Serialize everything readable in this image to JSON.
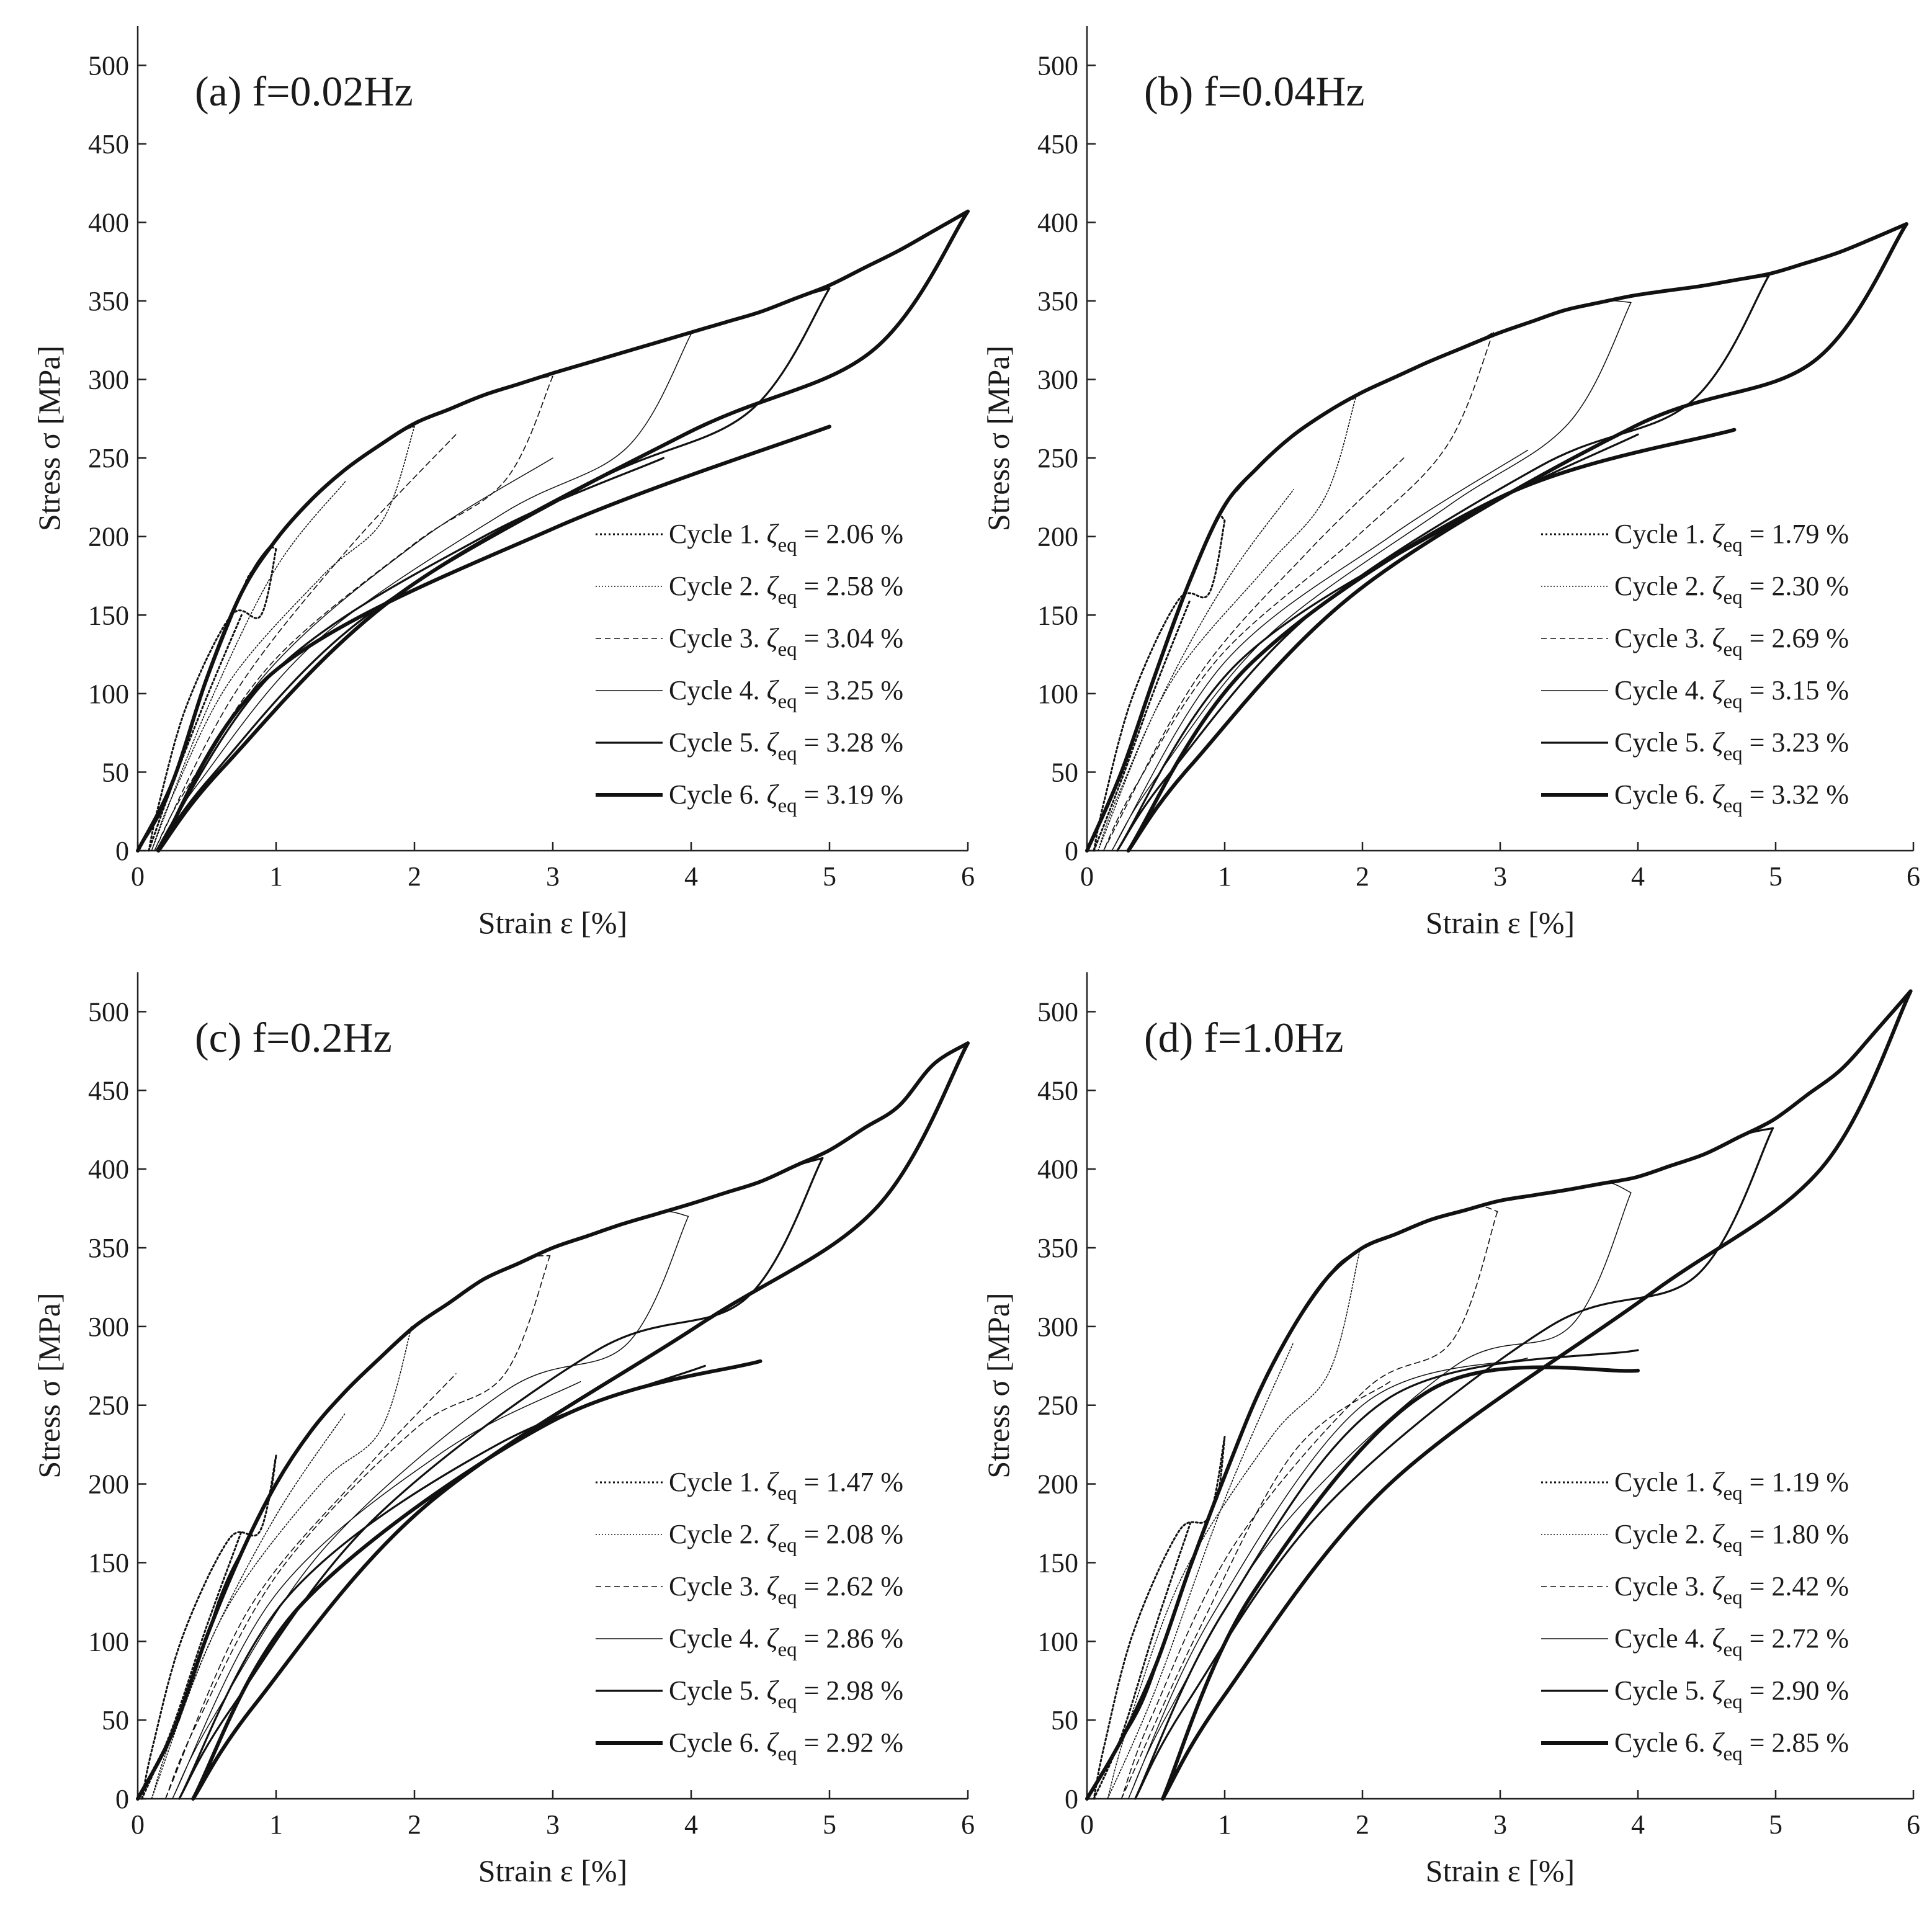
{
  "chart_data": [
    {
      "type": "line",
      "title": "(a) f=0.02Hz",
      "xlabel": "Strain ε [%]",
      "ylabel": "Stress σ [MPa]",
      "xlim": [
        0,
        6
      ],
      "ylim": [
        0,
        525
      ],
      "xticks": [
        0,
        1,
        2,
        3,
        4,
        5,
        6
      ],
      "yticks": [
        0,
        50,
        100,
        150,
        200,
        250,
        300,
        350,
        400,
        450,
        500
      ],
      "grid": false,
      "legend_position": "bottom-right",
      "series": [
        {
          "name": "Cycle 1",
          "zeta_eq": "2.06",
          "strain_max": 1,
          "stress_max": 192,
          "residual": 0.08,
          "unload_mid": 150,
          "reload": [
            [
              0.25,
              42
            ],
            [
              0.5,
              98
            ],
            [
              0.75,
              150
            ]
          ]
        },
        {
          "name": "Cycle 2",
          "zeta_eq": "2.58",
          "strain_max": 2,
          "stress_max": 270,
          "residual": 0.1,
          "unload_mid": 175,
          "reload": [
            [
              0.5,
              90
            ],
            [
              1,
              180
            ],
            [
              1.5,
              235
            ]
          ]
        },
        {
          "name": "Cycle 3",
          "zeta_eq": "3.04",
          "strain_max": 3,
          "stress_max": 302,
          "residual": 0.12,
          "unload_mid": 195,
          "reload": [
            [
              0.7,
              100
            ],
            [
              1.5,
              190
            ],
            [
              2.3,
              265
            ]
          ]
        },
        {
          "name": "Cycle 4",
          "zeta_eq": "3.25",
          "strain_max": 4,
          "stress_max": 329,
          "residual": 0.13,
          "unload_mid": 215,
          "reload": [
            [
              0.9,
              110
            ],
            [
              2,
              195
            ],
            [
              3,
              250
            ]
          ]
        },
        {
          "name": "Cycle 5",
          "zeta_eq": "3.28",
          "strain_max": 5,
          "stress_max": 358,
          "residual": 0.14,
          "unload_mid": 235,
          "reload": [
            [
              1,
              115
            ],
            [
              2.5,
              200
            ],
            [
              3.8,
              250
            ]
          ]
        },
        {
          "name": "Cycle 6",
          "zeta_eq": "3.19",
          "strain_max": 6,
          "stress_max": 407,
          "residual": 0.15,
          "unload_mid": 265,
          "reload": [
            [
              1,
              115
            ],
            [
              3,
              205
            ],
            [
              5,
              270
            ]
          ]
        }
      ],
      "envelope": [
        [
          0,
          0
        ],
        [
          0.2,
          30
        ],
        [
          0.5,
          110
        ],
        [
          0.8,
          175
        ],
        [
          1,
          198
        ],
        [
          1.3,
          228
        ],
        [
          1.6,
          250
        ],
        [
          2,
          272
        ],
        [
          2.5,
          290
        ],
        [
          3,
          304
        ],
        [
          3.5,
          317
        ],
        [
          4,
          330
        ],
        [
          4.5,
          343
        ],
        [
          5,
          360
        ],
        [
          5.5,
          382
        ],
        [
          6,
          407
        ]
      ]
    },
    {
      "type": "line",
      "title": "(b) f=0.04Hz",
      "xlabel": "Strain ε [%]",
      "ylabel": "Stress σ [MPa]",
      "xlim": [
        0,
        6
      ],
      "ylim": [
        0,
        525
      ],
      "xticks": [
        0,
        1,
        2,
        3,
        4,
        5,
        6
      ],
      "yticks": [
        0,
        50,
        100,
        150,
        200,
        250,
        300,
        350,
        400,
        450,
        500
      ],
      "grid": false,
      "legend_position": "bottom-right",
      "series": [
        {
          "name": "Cycle 1",
          "zeta_eq": "1.79",
          "strain_max": 1,
          "stress_max": 210,
          "residual": 0.05,
          "unload_mid": 160,
          "reload": [
            [
              0.25,
              45
            ],
            [
              0.5,
              105
            ],
            [
              0.75,
              160
            ]
          ]
        },
        {
          "name": "Cycle 2",
          "zeta_eq": "2.30",
          "strain_max": 1.95,
          "stress_max": 288,
          "residual": 0.08,
          "unload_mid": 180,
          "reload": [
            [
              0.5,
              90
            ],
            [
              1,
              170
            ],
            [
              1.5,
              230
            ]
          ]
        },
        {
          "name": "Cycle 3",
          "zeta_eq": "2.69",
          "strain_max": 2.95,
          "stress_max": 330,
          "residual": 0.12,
          "unload_mid": 200,
          "reload": [
            [
              0.8,
              110
            ],
            [
              1.6,
              190
            ],
            [
              2.3,
              250
            ]
          ]
        },
        {
          "name": "Cycle 4",
          "zeta_eq": "3.15",
          "strain_max": 3.95,
          "stress_max": 349,
          "residual": 0.18,
          "unload_mid": 220,
          "reload": [
            [
              1,
              120
            ],
            [
              2.2,
              200
            ],
            [
              3.2,
              255
            ]
          ]
        },
        {
          "name": "Cycle 5",
          "zeta_eq": "3.23",
          "strain_max": 4.95,
          "stress_max": 366,
          "residual": 0.22,
          "unload_mid": 245,
          "reload": [
            [
              1.1,
              120
            ],
            [
              2.7,
              210
            ],
            [
              4,
              265
            ]
          ]
        },
        {
          "name": "Cycle 6",
          "zeta_eq": "3.32",
          "strain_max": 5.95,
          "stress_max": 399,
          "residual": 0.3,
          "unload_mid": 270,
          "reload": [
            [
              1.2,
              120
            ],
            [
              3,
              225
            ],
            [
              4.7,
              268
            ]
          ]
        }
      ],
      "envelope": [
        [
          0,
          0
        ],
        [
          0.3,
          60
        ],
        [
          0.6,
          140
        ],
        [
          0.9,
          205
        ],
        [
          1,
          220
        ],
        [
          1.3,
          250
        ],
        [
          1.6,
          272
        ],
        [
          2,
          292
        ],
        [
          2.5,
          312
        ],
        [
          3,
          330
        ],
        [
          3.5,
          345
        ],
        [
          4,
          354
        ],
        [
          4.5,
          360
        ],
        [
          5,
          368
        ],
        [
          5.5,
          382
        ],
        [
          5.95,
          399
        ]
      ]
    },
    {
      "type": "line",
      "title": "(c) f=0.2Hz",
      "xlabel": "Strain ε [%]",
      "ylabel": "Stress σ [MPa]",
      "xlim": [
        0,
        6
      ],
      "ylim": [
        0,
        525
      ],
      "xticks": [
        0,
        1,
        2,
        3,
        4,
        5,
        6
      ],
      "yticks": [
        0,
        50,
        100,
        150,
        200,
        250,
        300,
        350,
        400,
        450,
        500
      ],
      "grid": false,
      "legend_position": "bottom-right",
      "series": [
        {
          "name": "Cycle 1",
          "zeta_eq": "1.47",
          "strain_max": 1,
          "stress_max": 218,
          "residual": 0.03,
          "unload_mid": 165,
          "reload": [
            [
              0.25,
              45
            ],
            [
              0.5,
              110
            ],
            [
              0.75,
              170
            ]
          ]
        },
        {
          "name": "Cycle 2",
          "zeta_eq": "2.08",
          "strain_max": 1.98,
          "stress_max": 300,
          "residual": 0.1,
          "unload_mid": 200,
          "reload": [
            [
              0.5,
              95
            ],
            [
              1,
              180
            ],
            [
              1.5,
              245
            ]
          ]
        },
        {
          "name": "Cycle 3",
          "zeta_eq": "2.62",
          "strain_max": 2.98,
          "stress_max": 345,
          "residual": 0.2,
          "unload_mid": 235,
          "reload": [
            [
              0.8,
              120
            ],
            [
              1.6,
              205
            ],
            [
              2.3,
              270
            ]
          ]
        },
        {
          "name": "Cycle 4",
          "zeta_eq": "2.86",
          "strain_max": 3.98,
          "stress_max": 370,
          "residual": 0.25,
          "unload_mid": 260,
          "reload": [
            [
              1,
              130
            ],
            [
              2.2,
              220
            ],
            [
              3.2,
              265
            ]
          ]
        },
        {
          "name": "Cycle 5",
          "zeta_eq": "2.98",
          "strain_max": 4.95,
          "stress_max": 407,
          "residual": 0.3,
          "unload_mid": 285,
          "reload": [
            [
              1.1,
              130
            ],
            [
              2.6,
              225
            ],
            [
              4.1,
              275
            ]
          ]
        },
        {
          "name": "Cycle 6",
          "zeta_eq": "2.92",
          "strain_max": 6,
          "stress_max": 480,
          "residual": 0.4,
          "unload_mid": 300,
          "reload": [
            [
              1.2,
              125
            ],
            [
              3,
              240
            ],
            [
              4.5,
              278
            ]
          ]
        }
      ],
      "envelope": [
        [
          0,
          0
        ],
        [
          0.3,
          50
        ],
        [
          0.6,
          130
        ],
        [
          1,
          200
        ],
        [
          1.3,
          240
        ],
        [
          1.6,
          268
        ],
        [
          2,
          300
        ],
        [
          2.5,
          330
        ],
        [
          3,
          350
        ],
        [
          3.5,
          365
        ],
        [
          4,
          378
        ],
        [
          4.5,
          392
        ],
        [
          5,
          412
        ],
        [
          5.5,
          440
        ],
        [
          5.85,
          477
        ],
        [
          6,
          480
        ]
      ]
    },
    {
      "type": "line",
      "title": "(d) f=1.0Hz",
      "xlabel": "Strain ε [%]",
      "ylabel": "Stress σ [MPa]",
      "xlim": [
        0,
        6
      ],
      "ylim": [
        0,
        525
      ],
      "xticks": [
        0,
        1,
        2,
        3,
        4,
        5,
        6
      ],
      "yticks": [
        0,
        50,
        100,
        150,
        200,
        250,
        300,
        350,
        400,
        450,
        500
      ],
      "grid": false,
      "legend_position": "bottom-right",
      "series": [
        {
          "name": "Cycle 1",
          "zeta_eq": "1.19",
          "strain_max": 1,
          "stress_max": 230,
          "residual": 0.05,
          "unload_mid": 170,
          "reload": [
            [
              0.25,
              40
            ],
            [
              0.5,
              110
            ],
            [
              0.75,
              175
            ]
          ]
        },
        {
          "name": "Cycle 2",
          "zeta_eq": "1.80",
          "strain_max": 1.98,
          "stress_max": 348,
          "residual": 0.15,
          "unload_mid": 230,
          "reload": [
            [
              0.5,
              70
            ],
            [
              1,
              190
            ],
            [
              1.5,
              290
            ]
          ]
        },
        {
          "name": "Cycle 3",
          "zeta_eq": "2.42",
          "strain_max": 2.98,
          "stress_max": 373,
          "residual": 0.25,
          "unload_mid": 260,
          "reload": [
            [
              0.8,
              105
            ],
            [
              1.5,
              220
            ],
            [
              2.2,
              265
            ]
          ]
        },
        {
          "name": "Cycle 4",
          "zeta_eq": "2.72",
          "strain_max": 3.95,
          "stress_max": 385,
          "residual": 0.3,
          "unload_mid": 275,
          "reload": [
            [
              0.9,
              115
            ],
            [
              2,
              250
            ],
            [
              3.2,
              280
            ]
          ]
        },
        {
          "name": "Cycle 5",
          "zeta_eq": "2.90",
          "strain_max": 4.98,
          "stress_max": 426,
          "residual": 0.35,
          "unload_mid": 300,
          "reload": [
            [
              1,
              120
            ],
            [
              2.2,
              255
            ],
            [
              4,
              285
            ]
          ]
        },
        {
          "name": "Cycle 6",
          "zeta_eq": "2.85",
          "strain_max": 5.98,
          "stress_max": 513,
          "residual": 0.55,
          "unload_mid": 320,
          "reload": [
            [
              1.2,
              130
            ],
            [
              2.5,
              260
            ],
            [
              4,
              272
            ]
          ]
        }
      ],
      "envelope": [
        [
          0,
          0
        ],
        [
          0.4,
          60
        ],
        [
          0.8,
          160
        ],
        [
          1.2,
          250
        ],
        [
          1.5,
          300
        ],
        [
          1.8,
          338
        ],
        [
          2,
          350
        ],
        [
          2.5,
          368
        ],
        [
          3,
          380
        ],
        [
          3.5,
          387
        ],
        [
          4,
          395
        ],
        [
          4.5,
          410
        ],
        [
          5,
          432
        ],
        [
          5.5,
          465
        ],
        [
          5.98,
          513
        ]
      ]
    }
  ]
}
